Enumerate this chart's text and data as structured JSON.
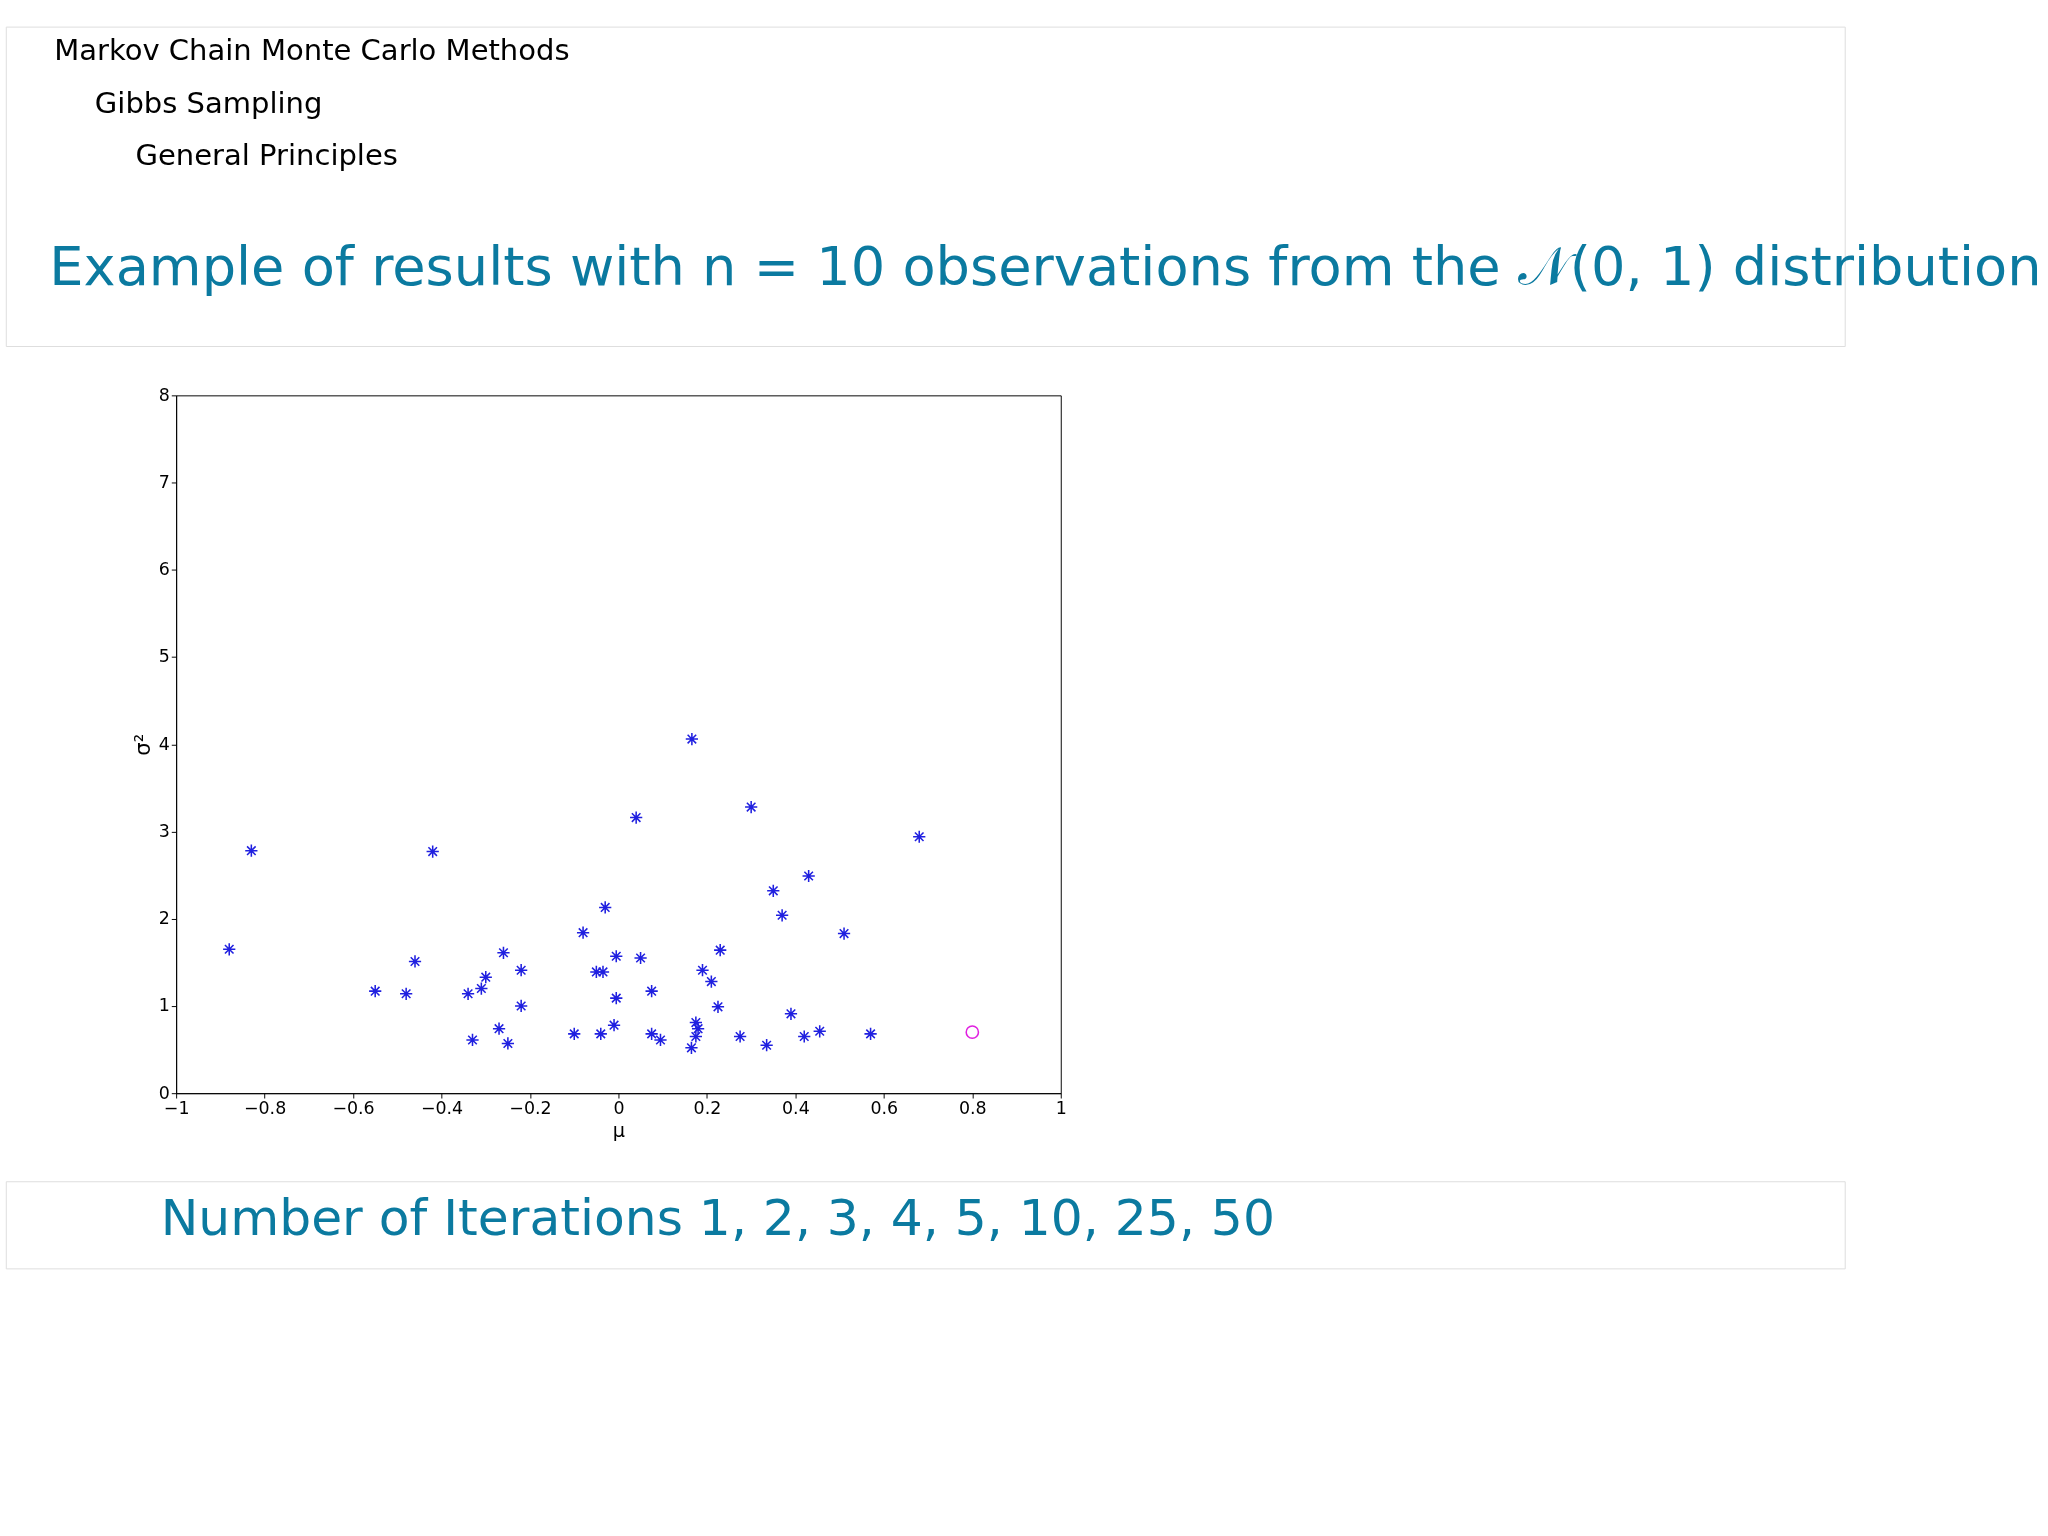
{
  "chart_data": {
    "type": "scatter",
    "title": "Example of results with n = 10 observations from the 𝒩(0, 1) distribution",
    "xlabel": "μ",
    "ylabel": "σ²",
    "annotations": [
      "Markov Chain Monte Carlo Methods",
      "Gibbs Sampling",
      "General Principles",
      "Number of Iterations 1, 2, 3, 4, 5, 10, 25, 50"
    ],
    "xlim": [
      -1,
      1
    ],
    "xticks": [
      -1,
      -0.8,
      -0.6,
      -0.4,
      -0.2,
      0,
      0.2,
      0.4,
      0.6,
      0.8,
      1
    ],
    "ylim": [
      0,
      8
    ],
    "yticks": [
      0,
      1,
      2,
      3,
      4,
      5,
      6,
      7,
      8
    ],
    "grid": false,
    "series": [
      {
        "color": "#2020e0",
        "marker": "cross",
        "x": [
          0.166,
          0.3,
          0.04,
          0.68,
          -0.83,
          -0.42,
          0.43,
          0.35,
          -0.03,
          0.37,
          -0.08,
          0.51,
          -0.88,
          -0.26,
          0.23,
          -0.005,
          0.05,
          -0.46,
          -0.22,
          -0.05,
          -0.035,
          0.19,
          -0.3,
          0.21,
          -0.55,
          -0.31,
          -0.34,
          -0.48,
          0.075,
          -0.005,
          -0.22,
          0.225,
          0.39,
          -0.01,
          0.175,
          -0.27,
          0.18,
          0.455,
          -0.1,
          -0.04,
          0.075,
          0.57,
          0.175,
          0.275,
          0.42,
          0.095,
          -0.33,
          -0.25,
          0.335,
          0.165
        ],
        "values": [
          4.06,
          3.28,
          3.16,
          2.94,
          2.78,
          2.77,
          2.49,
          2.32,
          2.13,
          2.04,
          1.84,
          1.83,
          1.65,
          1.61,
          1.64,
          1.57,
          1.55,
          1.51,
          1.41,
          1.39,
          1.39,
          1.41,
          1.33,
          1.28,
          1.17,
          1.2,
          1.14,
          1.14,
          1.17,
          1.09,
          1.0,
          0.99,
          0.91,
          0.78,
          0.81,
          0.74,
          0.74,
          0.71,
          0.68,
          0.68,
          0.68,
          0.68,
          0.65,
          0.65,
          0.65,
          0.61,
          0.61,
          0.57,
          0.55,
          0.52
        ]
      },
      {
        "color": "#e020e0",
        "marker": "circle",
        "x": [
          0.8
        ],
        "values": [
          0.7
        ]
      }
    ]
  }
}
